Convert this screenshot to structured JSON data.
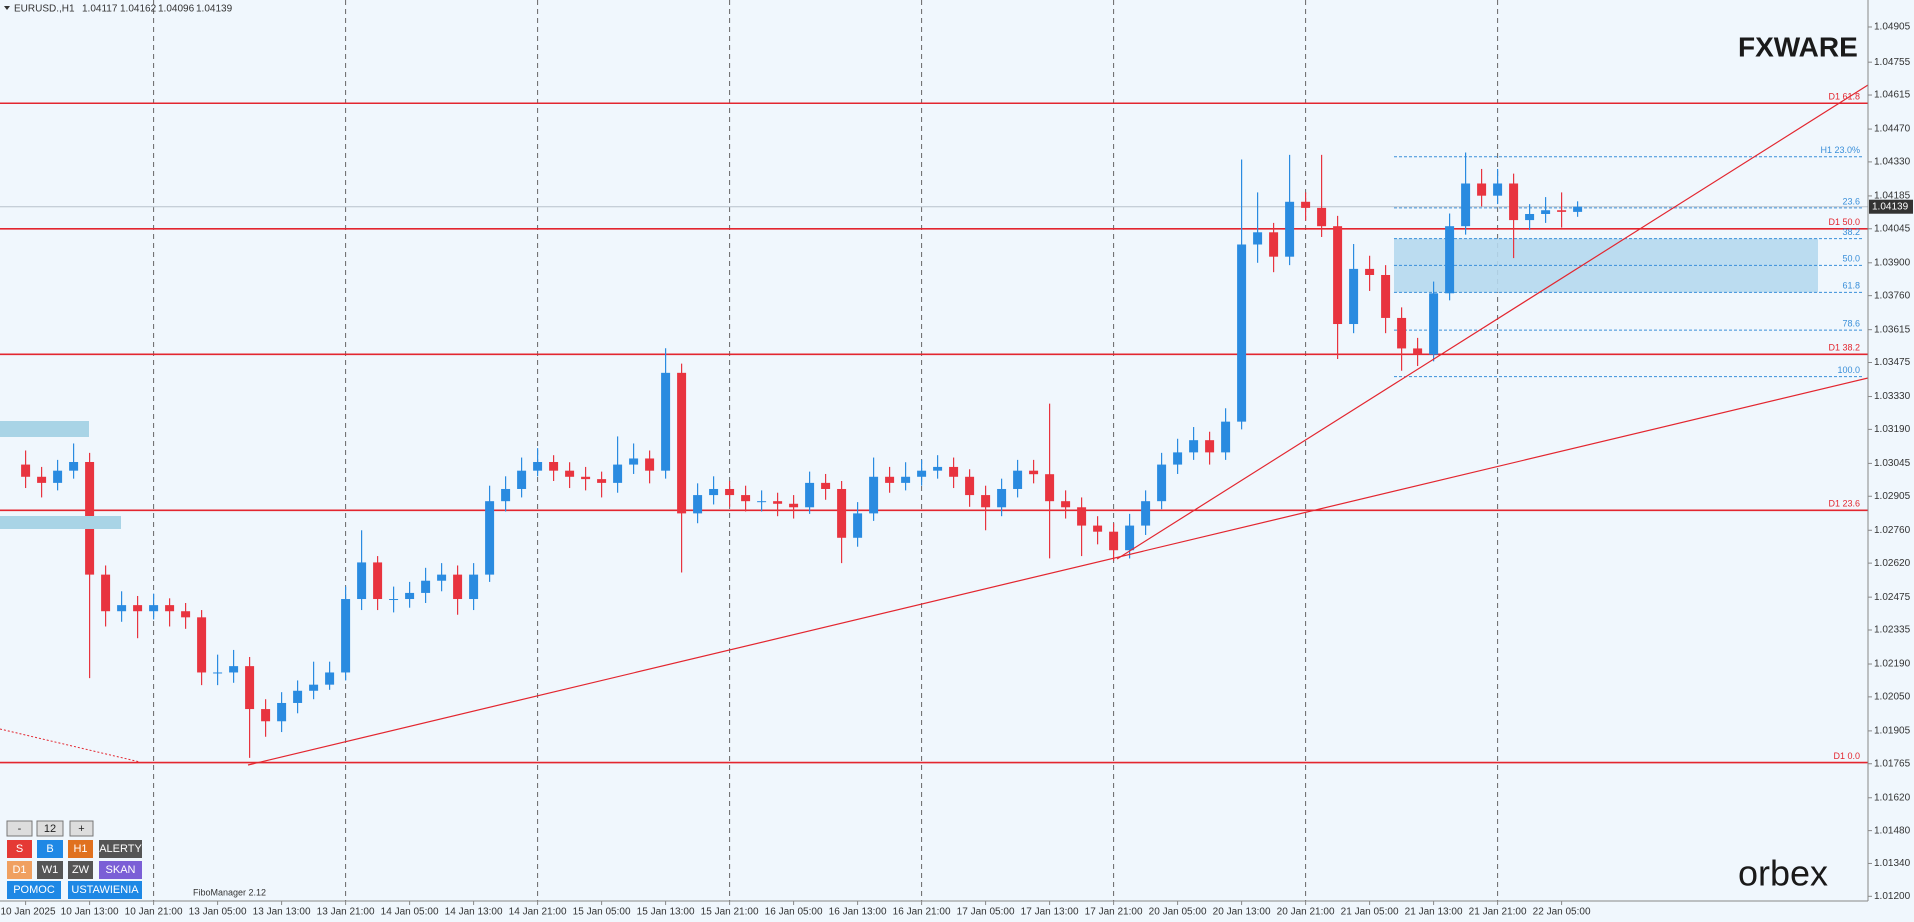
{
  "header": {
    "symbol": "EURUSD.,H1"
  },
  "chart_data": {
    "type": "candlestick",
    "candles": [
      [
        1.0304,
        1.031,
        1.0294,
        1.02988
      ],
      [
        1.02988,
        1.0303,
        1.029,
        1.02962
      ],
      [
        1.02962,
        1.0306,
        1.0293,
        1.03014
      ],
      [
        1.03014,
        1.0313,
        1.0298,
        1.03051
      ],
      [
        1.03051,
        1.0309,
        1.0213,
        1.02571
      ],
      [
        1.02571,
        1.0261,
        1.0235,
        1.02415
      ],
      [
        1.02415,
        1.025,
        1.0237,
        1.02441
      ],
      [
        1.02441,
        1.0248,
        1.023,
        1.02415
      ],
      [
        1.02415,
        1.0249,
        1.0238,
        1.02441
      ],
      [
        1.02441,
        1.0247,
        1.0235,
        1.02415
      ],
      [
        1.02415,
        1.0245,
        1.0234,
        1.02389
      ],
      [
        1.02389,
        1.0242,
        1.021,
        1.02154
      ],
      [
        1.02154,
        1.0223,
        1.021,
        1.02154
      ],
      [
        1.02154,
        1.0225,
        1.0211,
        1.02181
      ],
      [
        1.02181,
        1.0222,
        1.0179,
        1.01998
      ],
      [
        1.01998,
        1.0204,
        1.0188,
        1.01946
      ],
      [
        1.01946,
        1.0207,
        1.019,
        1.02024
      ],
      [
        1.02024,
        1.0212,
        1.0198,
        1.02076
      ],
      [
        1.02076,
        1.022,
        1.0204,
        1.02102
      ],
      [
        1.02102,
        1.022,
        1.0208,
        1.02154
      ],
      [
        1.02154,
        1.0252,
        1.0212,
        1.02467
      ],
      [
        1.02467,
        1.0276,
        1.0242,
        1.02623
      ],
      [
        1.02623,
        1.0265,
        1.0242,
        1.02467
      ],
      [
        1.02467,
        1.0252,
        1.0241,
        1.02467
      ],
      [
        1.02467,
        1.0254,
        1.0243,
        1.02493
      ],
      [
        1.02493,
        1.026,
        1.0245,
        1.02545
      ],
      [
        1.02545,
        1.0262,
        1.025,
        1.02571
      ],
      [
        1.02571,
        1.0261,
        1.024,
        1.02467
      ],
      [
        1.02467,
        1.0262,
        1.0242,
        1.02571
      ],
      [
        1.02571,
        1.0295,
        1.0254,
        1.02884
      ],
      [
        1.02884,
        1.0299,
        1.0284,
        1.02936
      ],
      [
        1.02936,
        1.0307,
        1.029,
        1.03014
      ],
      [
        1.03014,
        1.0311,
        1.0299,
        1.03051
      ],
      [
        1.03051,
        1.0308,
        1.0297,
        1.03014
      ],
      [
        1.03014,
        1.0305,
        1.0294,
        1.02988
      ],
      [
        1.02988,
        1.0303,
        1.0293,
        1.02978
      ],
      [
        1.02978,
        1.0301,
        1.029,
        1.02962
      ],
      [
        1.02962,
        1.0316,
        1.0292,
        1.0304
      ],
      [
        1.0304,
        1.0313,
        1.03,
        1.03066
      ],
      [
        1.03066,
        1.031,
        1.0296,
        1.03014
      ],
      [
        1.03014,
        1.03536,
        1.0298,
        1.03431
      ],
      [
        1.03431,
        1.0347,
        1.0258,
        1.02832
      ],
      [
        1.02832,
        1.0296,
        1.0279,
        1.0291
      ],
      [
        1.0291,
        1.0299,
        1.0287,
        1.02936
      ],
      [
        1.02936,
        1.0297,
        1.0286,
        1.0291
      ],
      [
        1.0291,
        1.0295,
        1.0284,
        1.02884
      ],
      [
        1.02884,
        1.0293,
        1.0284,
        1.02884
      ],
      [
        1.02884,
        1.0292,
        1.0282,
        1.02873
      ],
      [
        1.02873,
        1.0291,
        1.0281,
        1.02858
      ],
      [
        1.02858,
        1.0301,
        1.0283,
        1.02962
      ],
      [
        1.02962,
        1.03,
        1.0289,
        1.02936
      ],
      [
        1.02936,
        1.0297,
        1.0262,
        1.02728
      ],
      [
        1.02728,
        1.0288,
        1.0269,
        1.02832
      ],
      [
        1.02832,
        1.0307,
        1.028,
        1.02988
      ],
      [
        1.02988,
        1.0303,
        1.0292,
        1.02962
      ],
      [
        1.02962,
        1.0305,
        1.0293,
        1.02988
      ],
      [
        1.02988,
        1.0306,
        1.0295,
        1.03014
      ],
      [
        1.03014,
        1.0308,
        1.0298,
        1.0303
      ],
      [
        1.0303,
        1.0307,
        1.0294,
        1.02988
      ],
      [
        1.02988,
        1.0302,
        1.0286,
        1.0291
      ],
      [
        1.0291,
        1.0295,
        1.0276,
        1.02858
      ],
      [
        1.02858,
        1.0298,
        1.0282,
        1.02936
      ],
      [
        1.02936,
        1.0306,
        1.029,
        1.03014
      ],
      [
        1.03014,
        1.0306,
        1.0296,
        1.02999
      ],
      [
        1.02999,
        1.033,
        1.0264,
        1.02884
      ],
      [
        1.02884,
        1.0293,
        1.0281,
        1.02858
      ],
      [
        1.02858,
        1.029,
        1.0265,
        1.0278
      ],
      [
        1.0278,
        1.0282,
        1.027,
        1.02754
      ],
      [
        1.02754,
        1.0279,
        1.0263,
        1.02675
      ],
      [
        1.02675,
        1.0283,
        1.0264,
        1.0278
      ],
      [
        1.0278,
        1.0293,
        1.0274,
        1.02884
      ],
      [
        1.02884,
        1.0309,
        1.0285,
        1.0304
      ],
      [
        1.0304,
        1.0315,
        1.03,
        1.03092
      ],
      [
        1.03092,
        1.032,
        1.0306,
        1.03144
      ],
      [
        1.03144,
        1.0318,
        1.0304,
        1.03092
      ],
      [
        1.03092,
        1.0328,
        1.0306,
        1.03223
      ],
      [
        1.03223,
        1.0434,
        1.0319,
        1.03978
      ],
      [
        1.03978,
        1.042,
        1.039,
        1.0403
      ],
      [
        1.0403,
        1.0407,
        1.0386,
        1.03926
      ],
      [
        1.03926,
        1.0436,
        1.0389,
        1.0416
      ],
      [
        1.0416,
        1.042,
        1.0408,
        1.04134
      ],
      [
        1.04134,
        1.0436,
        1.0401,
        1.04056
      ],
      [
        1.04056,
        1.041,
        1.0349,
        1.03639
      ],
      [
        1.03639,
        1.0398,
        1.036,
        1.03874
      ],
      [
        1.03874,
        1.0393,
        1.0378,
        1.03848
      ],
      [
        1.03848,
        1.0389,
        1.036,
        1.03665
      ],
      [
        1.03665,
        1.0371,
        1.0344,
        1.03535
      ],
      [
        1.03535,
        1.0358,
        1.0346,
        1.03509
      ],
      [
        1.03509,
        1.0382,
        1.0348,
        1.0377
      ],
      [
        1.0377,
        1.0411,
        1.0374,
        1.04056
      ],
      [
        1.04056,
        1.0437,
        1.0402,
        1.04238
      ],
      [
        1.04238,
        1.043,
        1.0414,
        1.04186
      ],
      [
        1.04186,
        1.043,
        1.0415,
        1.04238
      ],
      [
        1.04238,
        1.0428,
        1.0392,
        1.04082
      ],
      [
        1.04082,
        1.0415,
        1.0404,
        1.04108
      ],
      [
        1.04108,
        1.0418,
        1.0407,
        1.04124
      ],
      [
        1.04124,
        1.042,
        1.0405,
        1.04117
      ],
      [
        1.04117,
        1.04162,
        1.04096,
        1.04139
      ]
    ],
    "x_labels": [
      "10 Jan 2025",
      "10 Jan 13:00",
      "10 Jan 21:00",
      "13 Jan 05:00",
      "13 Jan 13:00",
      "13 Jan 21:00",
      "14 Jan 05:00",
      "14 Jan 13:00",
      "14 Jan 21:00",
      "15 Jan 05:00",
      "15 Jan 13:00",
      "15 Jan 21:00",
      "16 Jan 05:00",
      "16 Jan 13:00",
      "16 Jan 21:00",
      "17 Jan 05:00",
      "17 Jan 13:00",
      "17 Jan 21:00",
      "20 Jan 05:00",
      "20 Jan 13:00",
      "20 Jan 21:00",
      "21 Jan 05:00",
      "21 Jan 13:00",
      "21 Jan 21:00",
      "22 Jan 05:00"
    ],
    "ylim": [
      1.0118,
      1.0502
    ],
    "yticks": [
      1.04905,
      1.04755,
      1.04615,
      {
        "value": 1.0447,
        "label": "1.04470"
      },
      {
        "value": 1.0433,
        "label": "1.04330"
      },
      1.04185,
      1.04045,
      {
        "value": 1.039,
        "label": "1.03900"
      },
      {
        "value": 1.0376,
        "label": "1.03760"
      },
      1.03615,
      1.03475,
      {
        "value": 1.0333,
        "label": "1.03330"
      },
      {
        "value": 1.0319,
        "label": "1.03190"
      },
      1.03045,
      1.02905,
      {
        "value": 1.0276,
        "label": "1.02760"
      },
      {
        "value": 1.0262,
        "label": "1.02620"
      },
      1.02475,
      1.02335,
      {
        "value": 1.0219,
        "label": "1.02190"
      },
      {
        "value": 1.0205,
        "label": "1.02050"
      },
      1.01905,
      1.01765,
      {
        "value": 1.0162,
        "label": "1.01620"
      },
      {
        "value": 1.0148,
        "label": "1.01480"
      },
      {
        "value": 1.0134,
        "label": "1.01340"
      },
      {
        "value": 1.012,
        "label": "1.01200"
      }
    ],
    "grid": true,
    "up_color": "#2a8be0",
    "down_color": "#e8343f",
    "levels": [
      {
        "label": "D1 61.8",
        "value": 1.0458
      },
      {
        "label": "D1 50.0",
        "value": 1.04045
      },
      {
        "label": "D1 38.2",
        "value": 1.0351
      },
      {
        "label": "D1 23.6",
        "value": 1.02845
      },
      {
        "label": "D1 0.0",
        "value": 1.0177
      }
    ],
    "level_color": "#e3262f",
    "fib_levels": [
      {
        "label": "H1 23.0%",
        "value": 1.04352
      },
      {
        "label": "23.6",
        "value": 1.04134
      },
      {
        "label": "38.2",
        "value": 1.04003
      },
      {
        "label": "50.0",
        "value": 1.03889
      },
      {
        "label": "61.8",
        "value": 1.03774
      },
      {
        "label": "78.6",
        "value": 1.03613
      },
      {
        "label": "100.0",
        "value": 1.03415
      }
    ],
    "fib_color": "#3a8fd9",
    "zone": [
      1.04003,
      1.03774
    ],
    "zone_color": "#b5d8ee"
  },
  "logos": {
    "top": "FXWARE",
    "bottom": "orbex"
  },
  "indicator": "FiboManager 2.12",
  "controls": [
    [
      "-",
      "12",
      "+"
    ],
    [
      "S",
      "B",
      "H1",
      "ALERTY"
    ],
    [
      "D1",
      "W1",
      "ZW",
      "SKAN"
    ],
    [
      "POMOC",
      "USTAWIENIA"
    ]
  ]
}
